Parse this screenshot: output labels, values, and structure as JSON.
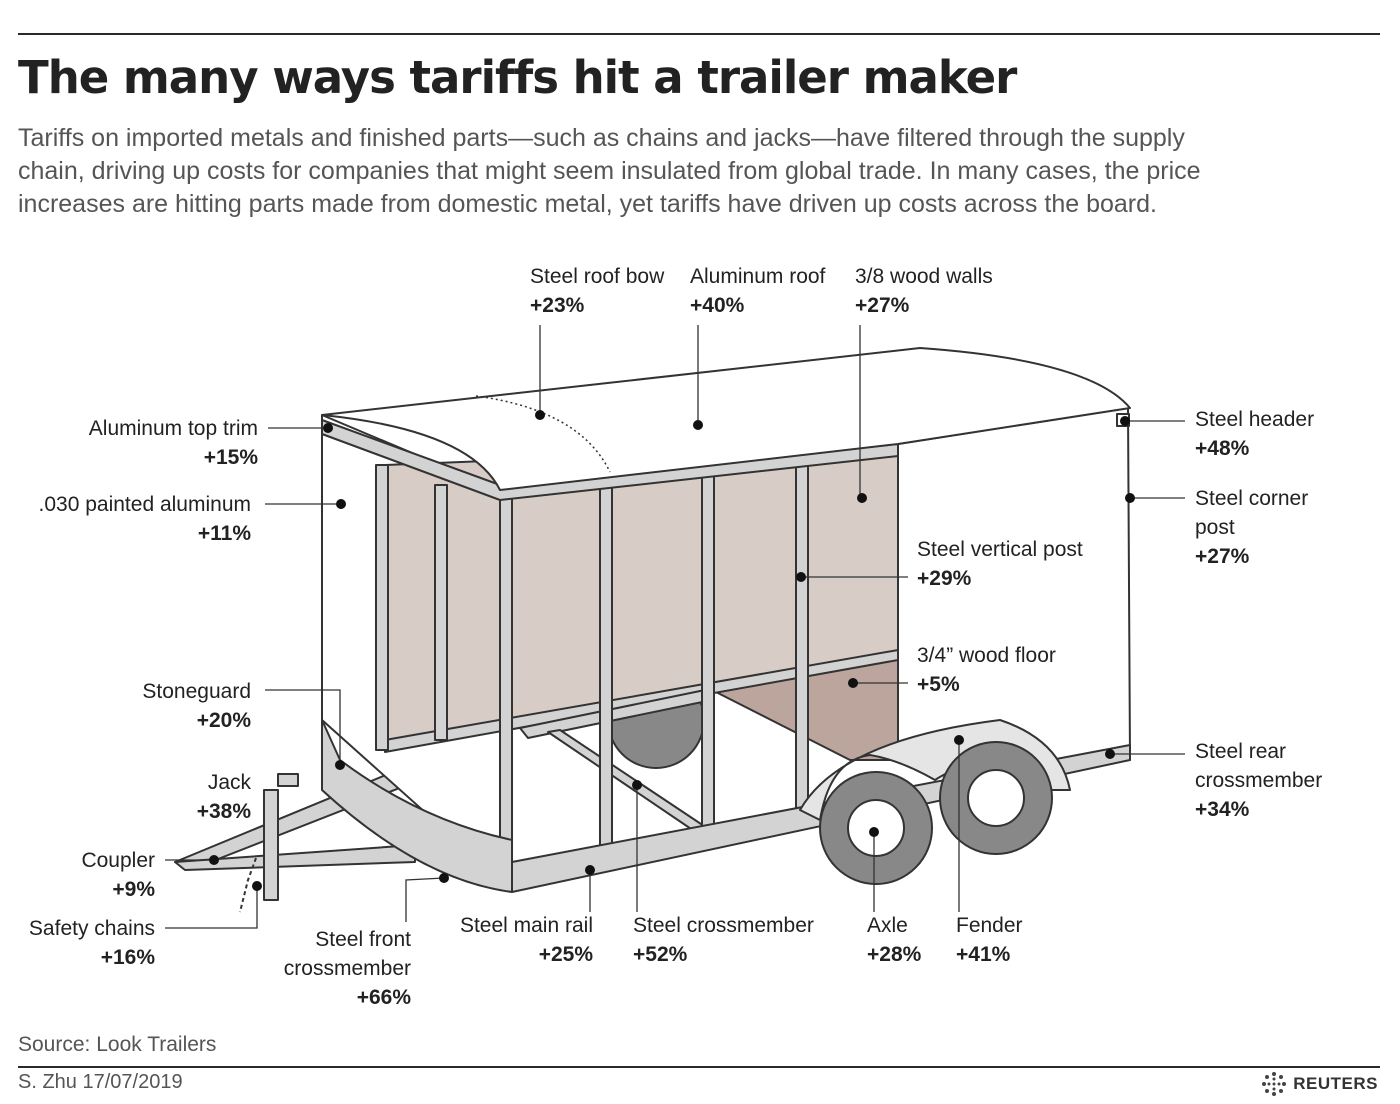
{
  "header": {
    "title": "The many ways tariffs hit a trailer maker",
    "subtitle": "Tariffs on imported metals and finished parts—such as chains and jacks—have filtered through the supply chain, driving up costs for companies that might seem insulated from global trade. In many cases, the price increases are hitting parts made from domestic metal, yet tariffs have driven up costs across the board."
  },
  "labels": {
    "steel_roof_bow": {
      "name": "Steel roof bow",
      "value": "+23%"
    },
    "aluminum_roof": {
      "name": "Aluminum roof",
      "value": "+40%"
    },
    "wood_walls": {
      "name": "3/8 wood walls",
      "value": "+27%"
    },
    "aluminum_top_trim": {
      "name": "Aluminum top trim",
      "value": "+15%"
    },
    "painted_aluminum": {
      "name": ".030 painted aluminum",
      "value": "+11%"
    },
    "steel_header": {
      "name": "Steel header",
      "value": "+48%"
    },
    "steel_corner_post": {
      "name1": "Steel corner",
      "name2": "post",
      "value": "+27%"
    },
    "steel_vertical_post": {
      "name": "Steel vertical post",
      "value": "+29%"
    },
    "wood_floor": {
      "name": "3/4” wood floor",
      "value": "+5%"
    },
    "stoneguard": {
      "name": "Stoneguard",
      "value": "+20%"
    },
    "jack": {
      "name": "Jack",
      "value": "+38%"
    },
    "coupler": {
      "name": "Coupler",
      "value": "+9%"
    },
    "safety_chains": {
      "name": "Safety chains",
      "value": "+16%"
    },
    "steel_front_crossmember": {
      "name1": "Steel front",
      "name2": "crossmember",
      "value": "+66%"
    },
    "steel_main_rail": {
      "name": "Steel main rail",
      "value": "+25%"
    },
    "steel_crossmember": {
      "name": "Steel crossmember",
      "value": "+52%"
    },
    "axle": {
      "name": "Axle",
      "value": "+28%"
    },
    "fender": {
      "name": "Fender",
      "value": "+41%"
    },
    "steel_rear_crossmember": {
      "name1": "Steel rear",
      "name2": "crossmember",
      "value": "+34%"
    }
  },
  "footer": {
    "source": "Source: Look Trailers",
    "credit": "S. Zhu 17/07/2019",
    "brand": "REUTERS"
  },
  "colors": {
    "wood_wall": "#d8ccc6",
    "wood_floor": "#bba59c",
    "steel": "#d3d3d3",
    "outline": "#333333"
  }
}
